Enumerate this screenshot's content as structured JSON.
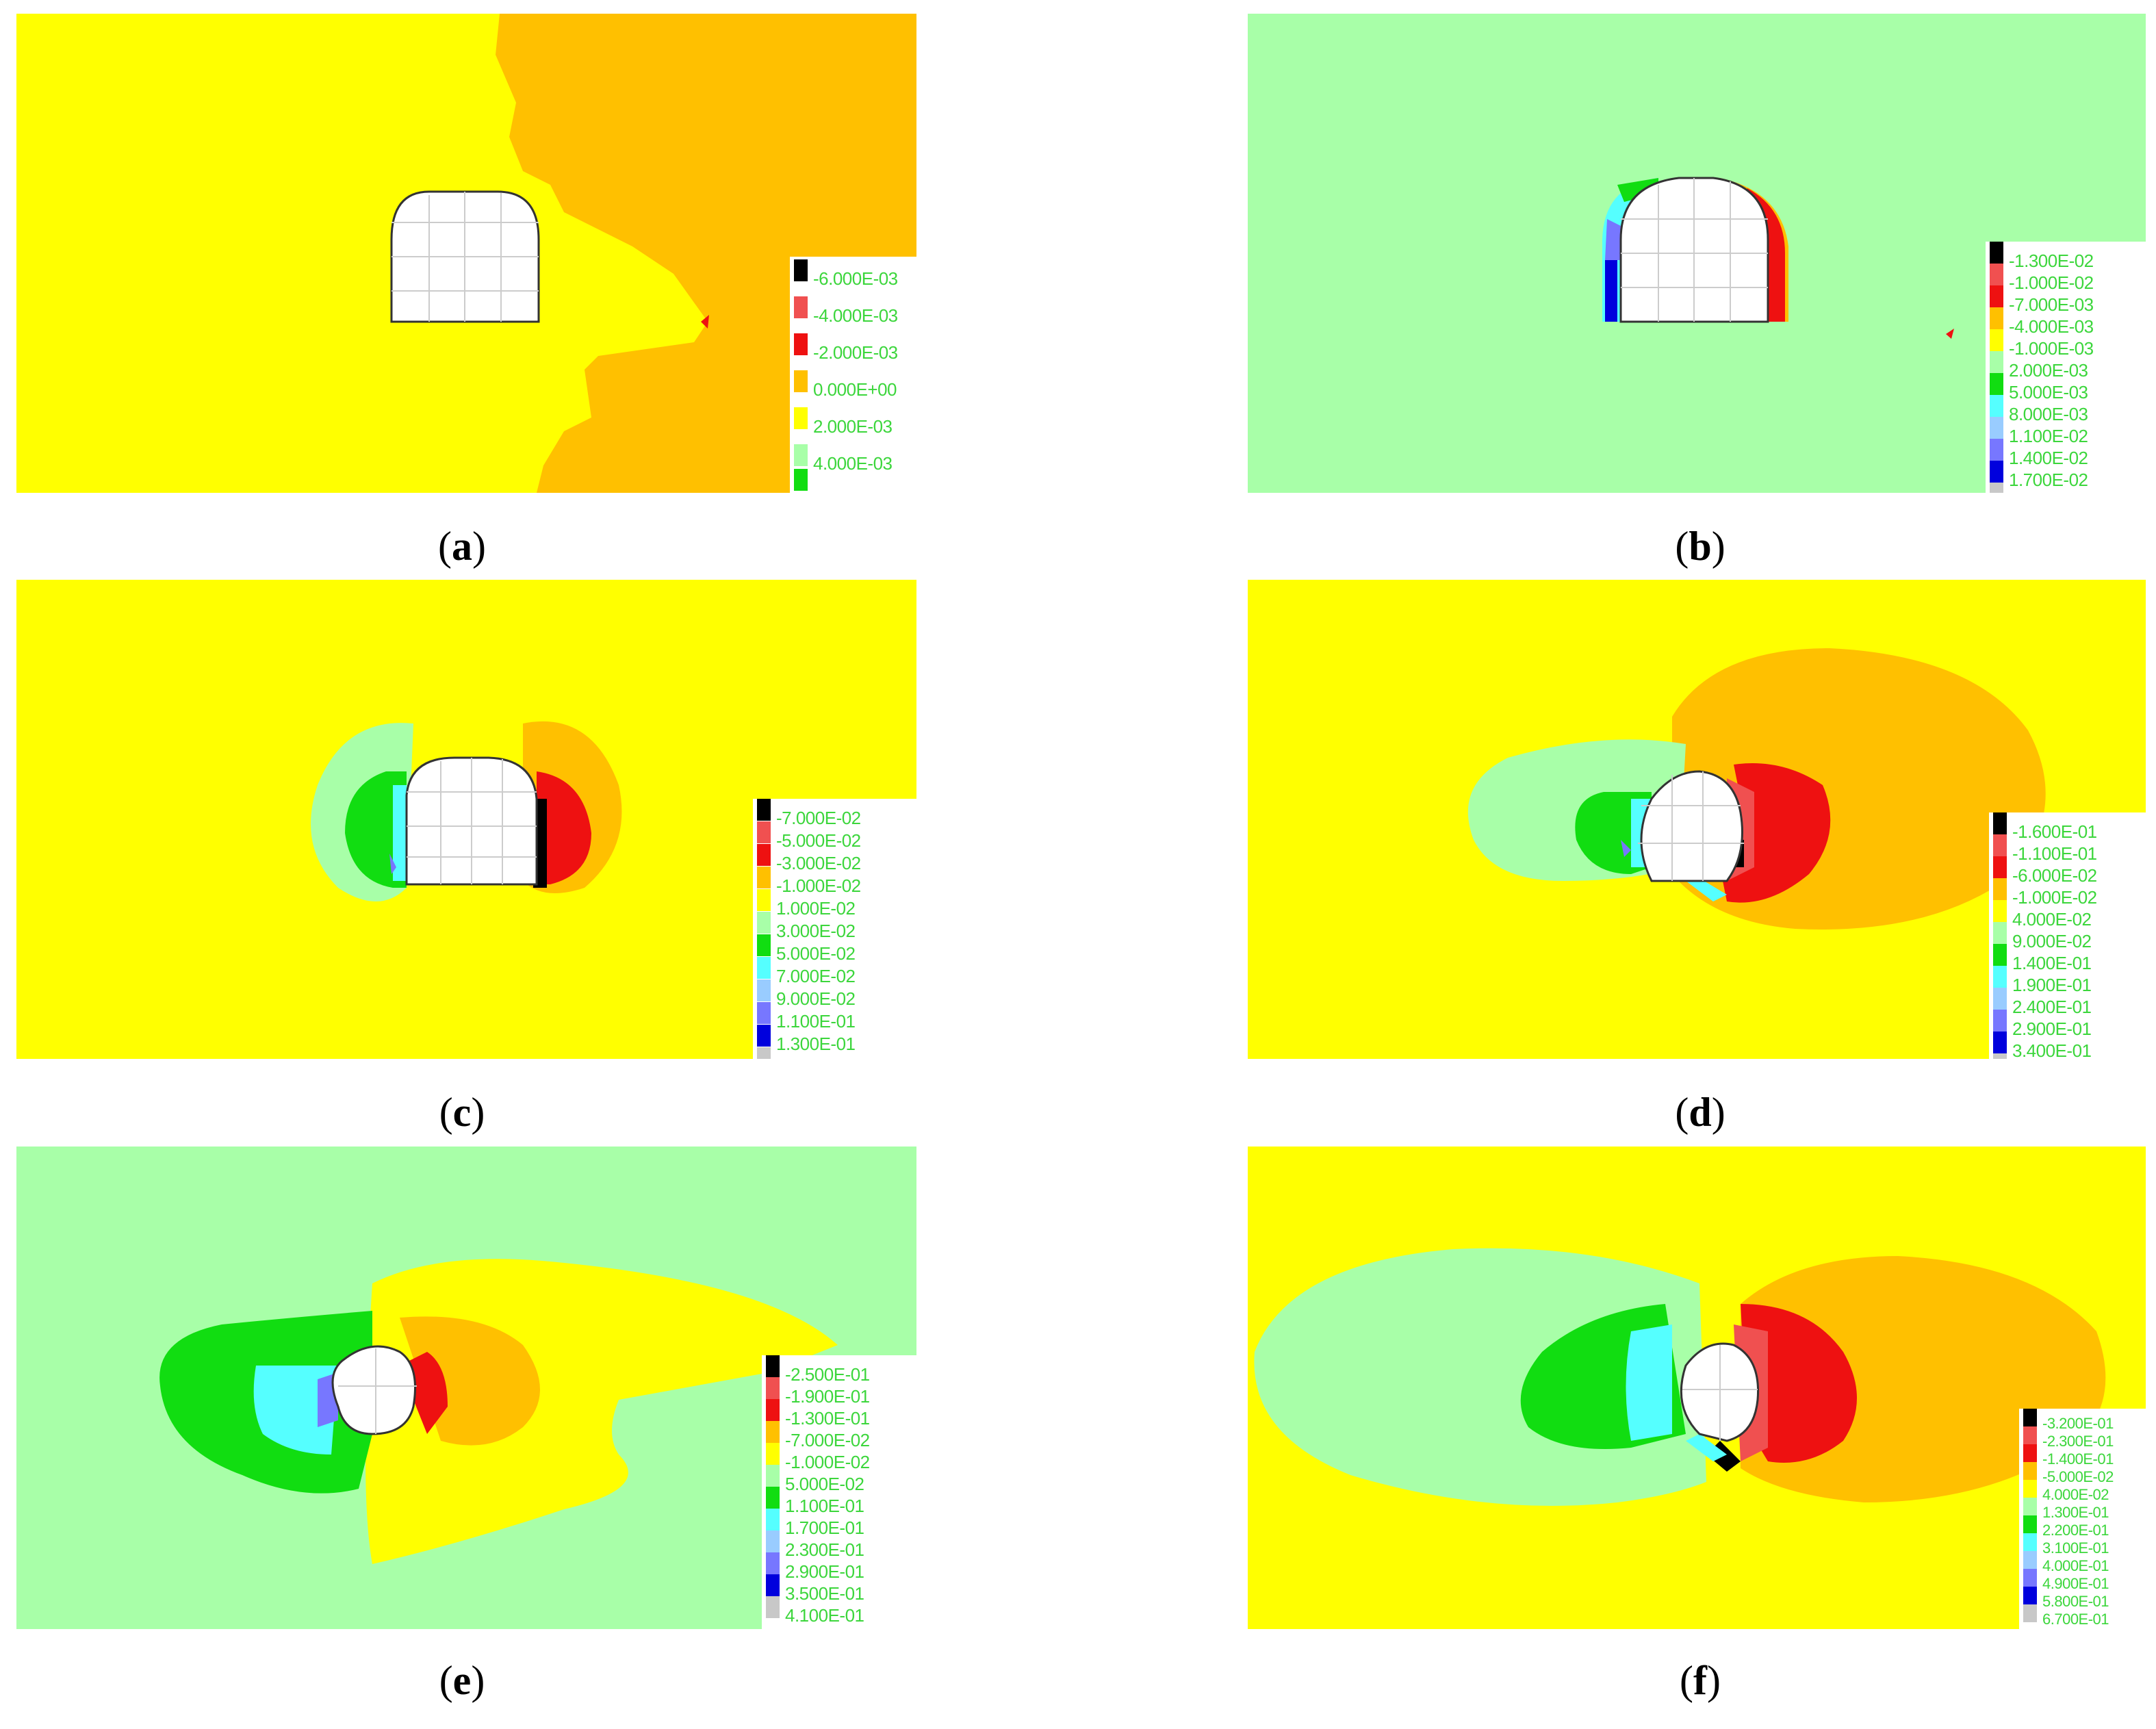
{
  "panels": [
    {
      "id": "a",
      "caption_letter": "a",
      "legend": [
        "-6.000E-03",
        "-4.000E-03",
        "-2.000E-03",
        "0.000E+00",
        "2.000E-03",
        "4.000E-03"
      ]
    },
    {
      "id": "b",
      "caption_letter": "b",
      "legend": [
        "-1.300E-02",
        "-1.000E-02",
        "-7.000E-03",
        "-4.000E-03",
        "-1.000E-03",
        "2.000E-03",
        "5.000E-03",
        "8.000E-03",
        "1.100E-02",
        "1.400E-02",
        "1.700E-02"
      ]
    },
    {
      "id": "c",
      "caption_letter": "c",
      "legend": [
        "-7.000E-02",
        "-5.000E-02",
        "-3.000E-02",
        "-1.000E-02",
        "1.000E-02",
        "3.000E-02",
        "5.000E-02",
        "7.000E-02",
        "9.000E-02",
        "1.100E-01",
        "1.300E-01"
      ]
    },
    {
      "id": "d",
      "caption_letter": "d",
      "legend": [
        "-1.600E-01",
        "-1.100E-01",
        "-6.000E-02",
        "-1.000E-02",
        "4.000E-02",
        "9.000E-02",
        "1.400E-01",
        "1.900E-01",
        "2.400E-01",
        "2.900E-01",
        "3.400E-01"
      ]
    },
    {
      "id": "e",
      "caption_letter": "e",
      "legend": [
        "-2.500E-01",
        "-1.900E-01",
        "-1.300E-01",
        "-7.000E-02",
        "-1.000E-02",
        "5.000E-02",
        "1.100E-01",
        "1.700E-01",
        "2.300E-01",
        "2.900E-01",
        "3.500E-01",
        "4.100E-01"
      ]
    },
    {
      "id": "f",
      "caption_letter": "f",
      "legend": [
        "-3.200E-01",
        "-2.300E-01",
        "-1.400E-01",
        "-5.000E-02",
        "4.000E-02",
        "1.300E-01",
        "2.200E-01",
        "3.100E-01",
        "4.000E-01",
        "4.900E-01",
        "5.800E-01",
        "6.700E-01"
      ]
    }
  ],
  "colors": {
    "black": "#000000",
    "salmon": "#f05050",
    "red": "#ee1111",
    "orange": "#ffc000",
    "yellow": "#ffff00",
    "light_green": "#a8ffa8",
    "green": "#11dd11",
    "cyan": "#55ffff",
    "light_blue": "#99ccff",
    "blue_violet": "#7777ff",
    "blue": "#0000dd",
    "grey": "#c8c8c8"
  }
}
